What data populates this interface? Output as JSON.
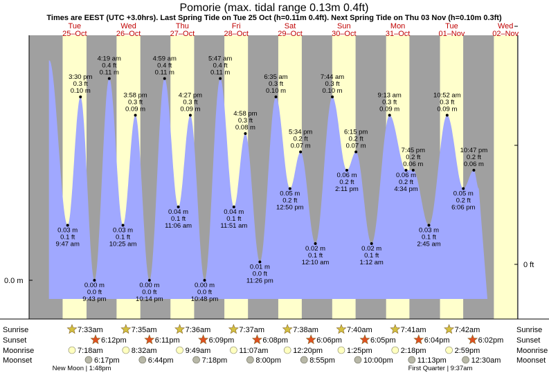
{
  "header": {
    "title": "Pomorie (max. tidal range 0.13m 0.4ft)",
    "subtitle": "Times are EEST (UTC +3.0hrs). Last Spring Tide on Tue 25 Oct (h=0.11m 0.4ft). Next Spring Tide on Thu 03 Nov (h=0.10m 0.3ft)"
  },
  "axis": {
    "left_label": "0.0 m",
    "right_label": "0 ft"
  },
  "days": [
    {
      "dow": "Tue",
      "date": "25–Oct"
    },
    {
      "dow": "Wed",
      "date": "26–Oct"
    },
    {
      "dow": "Thu",
      "date": "27–Oct"
    },
    {
      "dow": "Fri",
      "date": "28–Oct"
    },
    {
      "dow": "Sat",
      "date": "29–Oct"
    },
    {
      "dow": "Sun",
      "date": "30–Oct"
    },
    {
      "dow": "Mon",
      "date": "31–Oct"
    },
    {
      "dow": "Tue",
      "date": "01–Nov"
    },
    {
      "dow": "Wed",
      "date": "02–Nov"
    }
  ],
  "chart_data": {
    "type": "area",
    "x_unit": "date/time (EEST)",
    "y_unit": "m",
    "ylim": [
      -0.02,
      0.13
    ],
    "tides": [
      {
        "day": 0,
        "hour": 1.6,
        "m": 0.12,
        "unlabeled": true
      },
      {
        "day": 0,
        "hour": 9.78,
        "time": "9:47 am",
        "m": 0.03,
        "m_label": "0.03 m",
        "ft": "0.1 ft",
        "type": "low"
      },
      {
        "day": 0,
        "hour": 15.5,
        "time": "3:30 pm",
        "m": 0.1,
        "m_label": "0.10 m",
        "ft": "0.3 ft",
        "type": "high"
      },
      {
        "day": 0,
        "hour": 21.72,
        "time": "9:43 pm",
        "m": 0.0,
        "m_label": "0.00 m",
        "ft": "0.0 ft",
        "type": "low"
      },
      {
        "day": 1,
        "hour": 4.32,
        "time": "4:19 am",
        "m": 0.11,
        "m_label": "0.11 m",
        "ft": "0.4 ft",
        "type": "high"
      },
      {
        "day": 1,
        "hour": 10.42,
        "time": "10:25 am",
        "m": 0.03,
        "m_label": "0.03 m",
        "ft": "0.1 ft",
        "type": "low"
      },
      {
        "day": 1,
        "hour": 15.97,
        "time": "3:58 pm",
        "m": 0.09,
        "m_label": "0.09 m",
        "ft": "0.3 ft",
        "type": "high"
      },
      {
        "day": 1,
        "hour": 22.23,
        "time": "10:14 pm",
        "m": 0.0,
        "m_label": "0.00 m",
        "ft": "0.0 ft",
        "type": "low"
      },
      {
        "day": 2,
        "hour": 4.98,
        "time": "4:59 am",
        "m": 0.11,
        "m_label": "0.11 m",
        "ft": "0.4 ft",
        "type": "high"
      },
      {
        "day": 2,
        "hour": 11.1,
        "time": "11:06 am",
        "m": 0.04,
        "m_label": "0.04 m",
        "ft": "0.1 ft",
        "type": "low"
      },
      {
        "day": 2,
        "hour": 16.45,
        "time": "4:27 pm",
        "m": 0.09,
        "m_label": "0.09 m",
        "ft": "0.3 ft",
        "type": "high"
      },
      {
        "day": 2,
        "hour": 22.8,
        "time": "10:48 pm",
        "m": 0.0,
        "m_label": "0.00 m",
        "ft": "0.0 ft",
        "type": "low"
      },
      {
        "day": 3,
        "hour": 5.78,
        "time": "5:47 am",
        "m": 0.11,
        "m_label": "0.11 m",
        "ft": "0.4 ft",
        "type": "high"
      },
      {
        "day": 3,
        "hour": 11.85,
        "time": "11:51 am",
        "m": 0.04,
        "m_label": "0.04 m",
        "ft": "0.1 ft",
        "type": "low"
      },
      {
        "day": 3,
        "hour": 16.97,
        "time": "4:58 pm",
        "m": 0.08,
        "m_label": "0.08 m",
        "ft": "0.3 ft",
        "type": "high"
      },
      {
        "day": 3,
        "hour": 23.43,
        "time": "11:26 pm",
        "m": 0.01,
        "m_label": "0.01 m",
        "ft": "0.0 ft",
        "type": "low"
      },
      {
        "day": 4,
        "hour": 6.58,
        "time": "6:35 am",
        "m": 0.1,
        "m_label": "0.10 m",
        "ft": "0.3 ft",
        "type": "high"
      },
      {
        "day": 4,
        "hour": 12.83,
        "time": "12:50 pm",
        "m": 0.05,
        "m_label": "0.05 m",
        "ft": "0.2 ft",
        "type": "low"
      },
      {
        "day": 4,
        "hour": 17.57,
        "time": "5:34 pm",
        "m": 0.07,
        "m_label": "0.07 m",
        "ft": "0.2 ft",
        "type": "high"
      },
      {
        "day": 5,
        "hour": 0.17,
        "time": "12:10 am",
        "m": 0.02,
        "m_label": "0.02 m",
        "ft": "0.1 ft",
        "type": "low"
      },
      {
        "day": 5,
        "hour": 7.73,
        "time": "7:44 am",
        "m": 0.1,
        "m_label": "0.10 m",
        "ft": "0.3 ft",
        "type": "high"
      },
      {
        "day": 5,
        "hour": 14.18,
        "time": "2:11 pm",
        "m": 0.06,
        "m_label": "0.06 m",
        "ft": "0.2 ft",
        "type": "low"
      },
      {
        "day": 5,
        "hour": 18.25,
        "time": "6:15 pm",
        "m": 0.07,
        "m_label": "0.07 m",
        "ft": "0.2 ft",
        "type": "high"
      },
      {
        "day": 6,
        "hour": 1.2,
        "time": "1:12 am",
        "m": 0.02,
        "m_label": "0.02 m",
        "ft": "0.1 ft",
        "type": "low"
      },
      {
        "day": 6,
        "hour": 9.22,
        "time": "9:13 am",
        "m": 0.09,
        "m_label": "0.09 m",
        "ft": "0.3 ft",
        "type": "high"
      },
      {
        "day": 6,
        "hour": 16.57,
        "time": "4:34 pm",
        "m": 0.06,
        "m_label": "0.06 m",
        "ft": "0.2 ft",
        "type": "low"
      },
      {
        "day": 6,
        "hour": 19.75,
        "time": "7:45 pm",
        "m": 0.06,
        "m_label": "0.06 m",
        "ft": "0.2 ft",
        "type": "high"
      },
      {
        "day": 7,
        "hour": 2.75,
        "time": "2:45 am",
        "m": 0.03,
        "m_label": "0.03 m",
        "ft": "0.1 ft",
        "type": "low"
      },
      {
        "day": 7,
        "hour": 10.87,
        "time": "10:52 am",
        "m": 0.09,
        "m_label": "0.09 m",
        "ft": "0.3 ft",
        "type": "high"
      },
      {
        "day": 7,
        "hour": 18.1,
        "time": "6:06 pm",
        "m": 0.05,
        "m_label": "0.05 m",
        "ft": "0.2 ft",
        "type": "low"
      },
      {
        "day": 7,
        "hour": 22.78,
        "time": "10:47 pm",
        "m": 0.06,
        "m_label": "0.06 m",
        "ft": "0.2 ft",
        "type": "high"
      },
      {
        "day": 8,
        "hour": 1.0,
        "m": 0.05,
        "unlabeled": true
      }
    ]
  },
  "astro_labels": {
    "sunrise": "Sunrise",
    "sunset": "Sunset",
    "moonrise": "Moonrise",
    "moonset": "Moonset"
  },
  "colors": {
    "night": "#a0a0a0",
    "day": "#ffffcc",
    "water": "#a0a8ff",
    "day_header": "#c00000",
    "sunrise_star": "#d4c040",
    "sunset_star": "#e05020",
    "moonrise": "#ffffc0",
    "moonset": "#b8b8a8"
  },
  "sun_moon": [
    {
      "sunrise": "7:33am",
      "sunset": "6:12pm",
      "moonrise": "7:18am",
      "moonset": "6:17pm"
    },
    {
      "sunrise": "7:35am",
      "sunset": "6:11pm",
      "moonrise": "8:32am",
      "moonset": "6:44pm"
    },
    {
      "sunrise": "7:36am",
      "sunset": "6:09pm",
      "moonrise": "9:49am",
      "moonset": "7:18pm"
    },
    {
      "sunrise": "7:37am",
      "sunset": "6:08pm",
      "moonrise": "11:07am",
      "moonset": "8:00pm"
    },
    {
      "sunrise": "7:38am",
      "sunset": "6:06pm",
      "moonrise": "12:20pm",
      "moonset": "8:55pm"
    },
    {
      "sunrise": "7:40am",
      "sunset": "6:05pm",
      "moonrise": "1:25pm",
      "moonset": "10:00pm"
    },
    {
      "sunrise": "7:41am",
      "sunset": "6:04pm",
      "moonrise": "2:18pm",
      "moonset": "11:13pm"
    },
    {
      "sunrise": "7:42am",
      "sunset": "6:02pm",
      "moonrise": "2:59pm",
      "moonset": "12:30am"
    }
  ],
  "moon_phases": [
    {
      "label": "New Moon",
      "time": "1:48pm"
    },
    {
      "label": "First Quarter",
      "time": "9:37am"
    }
  ]
}
